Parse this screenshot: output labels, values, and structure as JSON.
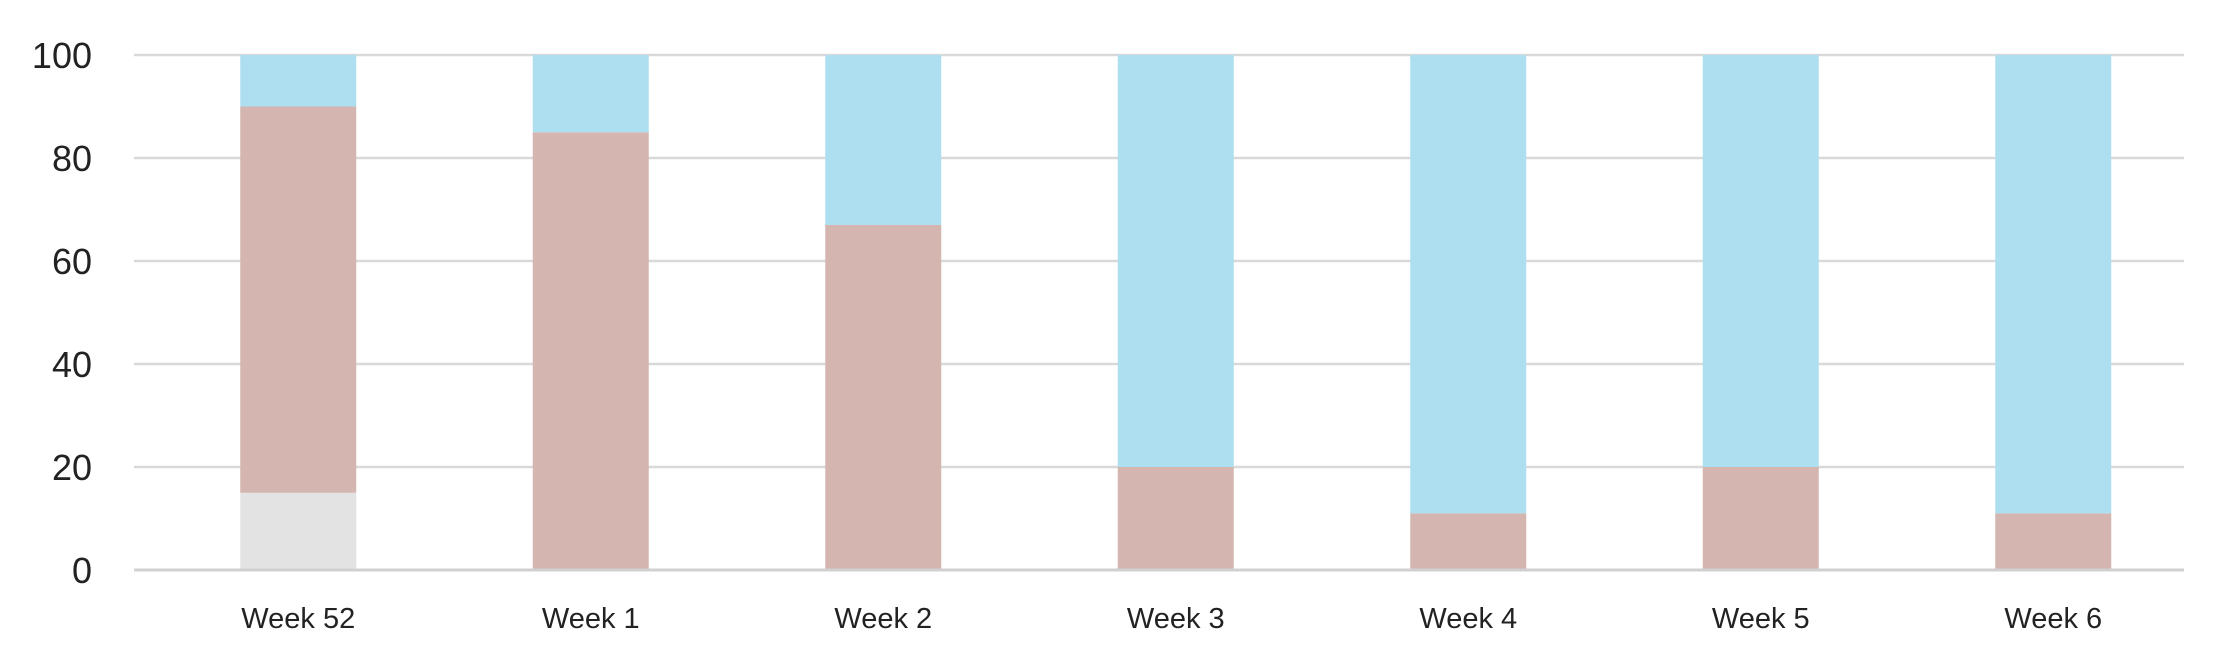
{
  "chart_data": {
    "type": "bar",
    "stacked": true,
    "categories": [
      "Week 52",
      "Week 1",
      "Week 2",
      "Week 3",
      "Week 4",
      "Week 5",
      "Week 6"
    ],
    "series": [
      {
        "color": "#e3e3e3",
        "values": [
          15,
          0,
          0,
          0,
          0,
          0,
          0
        ]
      },
      {
        "color": "#d4b5b0",
        "values": [
          75,
          85,
          67,
          20,
          11,
          20,
          11
        ]
      },
      {
        "color": "#aedff0",
        "values": [
          10,
          15,
          33,
          80,
          89,
          80,
          89
        ]
      }
    ],
    "ylim": [
      0,
      100
    ],
    "yticks": [
      0,
      20,
      40,
      60,
      80,
      100
    ],
    "grid": true,
    "legend": "none",
    "title": "",
    "xlabel": "",
    "ylabel": ""
  }
}
